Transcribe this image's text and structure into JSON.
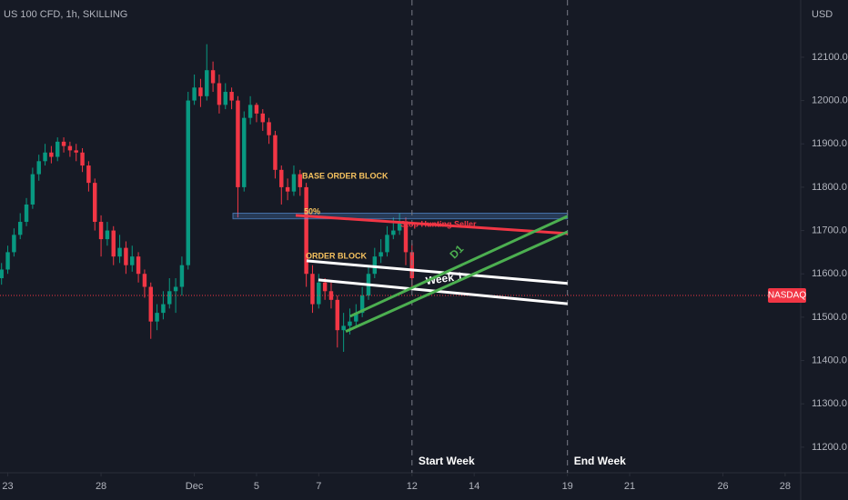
{
  "chart_data": {
    "type": "candlestick",
    "title": "US 100 CFD, 1h, SKILLING",
    "y_unit": "USD",
    "up_color": "#089981",
    "down_color": "#f23645",
    "x": [
      -0.2,
      0,
      0.2,
      0.4,
      0.6,
      0.8,
      1.0,
      1.2,
      1.4,
      1.6,
      1.8,
      2.0,
      2.2,
      2.4,
      2.6,
      2.8,
      3.0,
      3.2,
      3.4,
      3.6,
      3.8,
      4.0,
      4.2,
      4.4,
      4.6,
      4.8,
      5.0,
      5.2,
      5.4,
      5.6,
      5.8,
      6.0,
      6.2,
      6.4,
      6.6,
      6.8,
      7.0,
      7.2,
      7.4,
      7.6,
      7.8,
      8.0,
      8.2,
      8.4,
      8.6,
      8.8,
      9.0,
      9.2,
      9.4,
      9.6,
      9.8,
      10.0,
      10.2,
      10.4,
      10.6,
      10.8,
      11.0,
      11.2,
      11.4,
      11.6,
      11.8,
      12.0,
      12.2,
      12.4,
      12.6,
      12.8,
      13.0
    ],
    "open": [
      11590,
      11610,
      11650,
      11690,
      11720,
      11760,
      11830,
      11860,
      11880,
      11870,
      11905,
      11895,
      11885,
      11880,
      11850,
      11810,
      11720,
      11680,
      11700,
      11640,
      11660,
      11620,
      11640,
      11600,
      11570,
      11490,
      11510,
      11530,
      11560,
      11570,
      11620,
      12000,
      12030,
      12010,
      12070,
      12040,
      11990,
      12020,
      12000,
      11800,
      11960,
      11990,
      11970,
      11950,
      11920,
      11840,
      11800,
      11790,
      11830,
      11800,
      11600,
      11530,
      11580,
      11560,
      11540,
      11470,
      11480,
      11490,
      11510,
      11550,
      11600,
      11640,
      11650,
      11690,
      11700,
      11720,
      11650
    ],
    "high": [
      11625,
      11665,
      11705,
      11740,
      11775,
      11845,
      11875,
      11900,
      11895,
      11915,
      11915,
      11905,
      11900,
      11890,
      11860,
      11820,
      11735,
      11720,
      11710,
      11690,
      11675,
      11665,
      11650,
      11610,
      11580,
      11530,
      11560,
      11590,
      11590,
      11640,
      12020,
      12060,
      12050,
      12130,
      12090,
      12060,
      12040,
      12030,
      12010,
      11975,
      12010,
      11995,
      11980,
      11960,
      11930,
      11850,
      11820,
      11850,
      11840,
      11810,
      11620,
      11600,
      11590,
      11580,
      11550,
      11510,
      11520,
      11530,
      11570,
      11620,
      11660,
      11680,
      11710,
      11730,
      11740,
      11730,
      11670
    ],
    "low": [
      11575,
      11600,
      11640,
      11680,
      11710,
      11750,
      11815,
      11850,
      11855,
      11860,
      11880,
      11870,
      11860,
      11835,
      11790,
      11700,
      11640,
      11665,
      11620,
      11625,
      11600,
      11605,
      11580,
      11545,
      11450,
      11470,
      11495,
      11520,
      11510,
      11550,
      11610,
      11990,
      11985,
      12000,
      12020,
      11970,
      11980,
      11980,
      11730,
      11790,
      11945,
      11950,
      11930,
      11900,
      11820,
      11760,
      11770,
      11780,
      11780,
      11570,
      11510,
      11520,
      11540,
      11520,
      11430,
      11420,
      11460,
      11480,
      11500,
      11540,
      11590,
      11625,
      11640,
      11680,
      11690,
      11620,
      11570
    ],
    "close": [
      11610,
      11650,
      11690,
      11720,
      11760,
      11830,
      11860,
      11880,
      11870,
      11905,
      11895,
      11885,
      11880,
      11850,
      11810,
      11720,
      11680,
      11700,
      11640,
      11660,
      11620,
      11640,
      11600,
      11570,
      11490,
      11510,
      11530,
      11560,
      11570,
      11620,
      12000,
      12030,
      12010,
      12070,
      12040,
      11990,
      12020,
      12000,
      11800,
      11960,
      11990,
      11970,
      11950,
      11920,
      11840,
      11800,
      11790,
      11830,
      11800,
      11600,
      11530,
      11580,
      11560,
      11540,
      11470,
      11480,
      11490,
      11510,
      11550,
      11600,
      11640,
      11650,
      11690,
      11700,
      11720,
      11650,
      11590
    ],
    "xlim": [
      -0.25,
      25.5
    ],
    "ylim": [
      11141,
      12232
    ],
    "xticks": [
      {
        "value": 0,
        "label": "23"
      },
      {
        "value": 3,
        "label": "28"
      },
      {
        "value": 6,
        "label": "Dec"
      },
      {
        "value": 8,
        "label": "5"
      },
      {
        "value": 10,
        "label": "7"
      },
      {
        "value": 13,
        "label": "12"
      },
      {
        "value": 15,
        "label": "14"
      },
      {
        "value": 18,
        "label": "19"
      },
      {
        "value": 20,
        "label": "21"
      },
      {
        "value": 23,
        "label": "26"
      },
      {
        "value": 25,
        "label": "28"
      }
    ],
    "yticks": [
      {
        "value": 11200,
        "label": "11200.0"
      },
      {
        "value": 11300,
        "label": "11300.0"
      },
      {
        "value": 11400,
        "label": "11400.0"
      },
      {
        "value": 11500,
        "label": "11500.0"
      },
      {
        "value": 11600,
        "label": "11600.0"
      },
      {
        "value": 11700,
        "label": "11700.0"
      },
      {
        "value": 11800,
        "label": "11800.0"
      },
      {
        "value": 11900,
        "label": "11900.0"
      },
      {
        "value": 12000,
        "label": "12000.0"
      },
      {
        "value": 12100,
        "label": "12100.0"
      }
    ],
    "price_line": {
      "label": "NASDAQ",
      "value": 11550,
      "color": "#f23645"
    },
    "zone": {
      "x": [
        7.24,
        18
      ],
      "values": [
        11740,
        11727
      ],
      "color": "#5d9cec"
    },
    "drawings": [
      {
        "name": "Stop Hunting Seller",
        "color": "#f23645",
        "x": [
          9.26,
          18
        ],
        "values": [
          11735,
          11693
        ]
      },
      {
        "name": "Week 1",
        "color": "#ffffff",
        "x": [
          9.61,
          18
        ],
        "values": [
          11630,
          11578
        ]
      },
      {
        "color": "#ffffff",
        "x": [
          9.99,
          18
        ],
        "values": [
          11586,
          11531
        ]
      },
      {
        "name": "D1",
        "color": "#4caf50",
        "x": [
          11.01,
          18
        ],
        "values": [
          11502,
          11733
        ]
      },
      {
        "color": "#4caf50",
        "x": [
          10.87,
          18
        ],
        "values": [
          11467,
          11697
        ]
      }
    ],
    "sessions": [
      {
        "name": "Start Week",
        "x": 13
      },
      {
        "name": "End Week",
        "x": 18
      }
    ],
    "annotations": [
      "BASE ORDER BLOCK",
      "50%",
      "ORDER BLOCK"
    ]
  }
}
